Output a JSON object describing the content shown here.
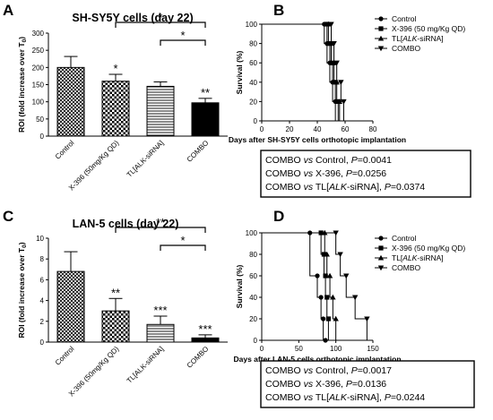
{
  "chart_data": [
    {
      "panel": "A",
      "type": "bar",
      "title": "SH-SY5Y cells (day 22)",
      "ylabel": "ROI (fold increase over T0)",
      "categories": [
        "Control",
        "X-396 (50mg/Kg QD)",
        "TL[ALK-siRNA]",
        "COMBO"
      ],
      "values": [
        200,
        160,
        145,
        97
      ],
      "errors": [
        32,
        20,
        13,
        13
      ],
      "patterns": [
        "crosshatch",
        "checker",
        "hlines",
        "solid"
      ],
      "ylim": [
        0,
        300
      ],
      "yticks": [
        0,
        50,
        100,
        150,
        200,
        250,
        300
      ],
      "bar_labels": [
        "",
        "*",
        "",
        "**"
      ],
      "brackets": [
        {
          "from": 1,
          "to": 3,
          "label": "*",
          "level": 0
        },
        {
          "from": 2,
          "to": 3,
          "label": "*",
          "level": 1
        }
      ]
    },
    {
      "panel": "B",
      "type": "line",
      "subtype": "step",
      "xlabel": "Days after SH-SY5Y cells orthotopic implantation",
      "ylabel": "Survival (%)",
      "xlim": [
        0,
        80
      ],
      "ylim": [
        0,
        100
      ],
      "xticks": [
        0,
        20,
        40,
        60,
        80
      ],
      "yticks": [
        0,
        20,
        40,
        60,
        80,
        100
      ],
      "series": [
        {
          "name": "Control",
          "marker": "circle",
          "x": [
            0,
            45,
            47,
            49,
            51,
            53
          ],
          "y": [
            100,
            80,
            60,
            40,
            20,
            0
          ]
        },
        {
          "name": "X-396 (50 mg/Kg QD)",
          "marker": "square",
          "x": [
            0,
            47,
            49,
            51,
            53,
            55
          ],
          "y": [
            100,
            80,
            60,
            40,
            20,
            0
          ]
        },
        {
          "name": "TL[ALK-siRNA]",
          "marker": "triangle-up",
          "x": [
            0,
            48,
            50,
            52,
            54,
            56
          ],
          "y": [
            100,
            80,
            60,
            40,
            20,
            0
          ]
        },
        {
          "name": "COMBO",
          "marker": "triangle-down",
          "x": [
            0,
            50,
            52,
            54,
            57,
            59
          ],
          "y": [
            100,
            80,
            60,
            40,
            20,
            0
          ]
        }
      ],
      "stats": [
        {
          "prefix": "COMBO ",
          "vs": "vs",
          "group": " Control, ",
          "group_italic": "",
          "group_suffix": "",
          "p": "P",
          "value": "=0.0041"
        },
        {
          "prefix": "COMBO ",
          "vs": "vs",
          "group": " X-396, ",
          "group_italic": "",
          "group_suffix": "",
          "p": "P",
          "value": "=0.0256"
        },
        {
          "prefix": "COMBO ",
          "vs": "vs",
          "group": " TL[",
          "group_italic": "ALK",
          "group_suffix": "-siRNA], ",
          "p": "P",
          "value": "=0.0374"
        }
      ]
    },
    {
      "panel": "C",
      "type": "bar",
      "title": "LAN-5 cells (day 22)",
      "ylabel": "ROI (fold increase over T0)",
      "categories": [
        "Control",
        "X-396 (50mg/Kg QD)",
        "TL[ALK-siRNA]",
        "COMBO"
      ],
      "values": [
        6.8,
        3.0,
        1.7,
        0.4
      ],
      "errors": [
        1.9,
        1.2,
        0.8,
        0.3
      ],
      "patterns": [
        "crosshatch",
        "checker",
        "hlines",
        "solid"
      ],
      "ylim": [
        0,
        10
      ],
      "yticks": [
        0,
        2,
        4,
        6,
        8,
        10
      ],
      "bar_labels": [
        "",
        "**",
        "***",
        "***"
      ],
      "brackets": [
        {
          "from": 1,
          "to": 3,
          "label": "**",
          "level": 0
        },
        {
          "from": 2,
          "to": 3,
          "label": "*",
          "level": 1
        }
      ]
    },
    {
      "panel": "D",
      "type": "line",
      "subtype": "step",
      "xlabel": "Days after LAN-5 cells orthotopic implantation",
      "ylabel": "Survival (%)",
      "xlim": [
        0,
        150
      ],
      "ylim": [
        0,
        100
      ],
      "xticks": [
        0,
        50,
        100,
        150
      ],
      "yticks": [
        0,
        20,
        40,
        60,
        80,
        100
      ],
      "series": [
        {
          "name": "Control",
          "marker": "circle",
          "x": [
            0,
            65,
            75,
            80,
            83,
            86
          ],
          "y": [
            100,
            60,
            40,
            20,
            0,
            0
          ]
        },
        {
          "name": "X-396 (50 mg/Kg QD)",
          "marker": "square",
          "x": [
            0,
            80,
            84,
            86,
            88,
            90
          ],
          "y": [
            100,
            80,
            60,
            40,
            20,
            0
          ]
        },
        {
          "name": "TL[ALK-siRNA]",
          "marker": "triangle-up",
          "x": [
            0,
            85,
            88,
            92,
            96,
            100
          ],
          "y": [
            100,
            80,
            60,
            40,
            20,
            0
          ]
        },
        {
          "name": "COMBO",
          "marker": "triangle-down",
          "x": [
            0,
            100,
            106,
            114,
            126,
            142
          ],
          "y": [
            100,
            80,
            60,
            40,
            20,
            0
          ]
        }
      ],
      "stats": [
        {
          "prefix": "COMBO ",
          "vs": "vs",
          "group": " Control, ",
          "group_italic": "",
          "group_suffix": "",
          "p": "P",
          "value": "=0.0017"
        },
        {
          "prefix": "COMBO ",
          "vs": "vs",
          "group": " X-396, ",
          "group_italic": "",
          "group_suffix": "",
          "p": "P",
          "value": "=0.0136"
        },
        {
          "prefix": "COMBO ",
          "vs": "vs",
          "group": " TL[",
          "group_italic": "ALK",
          "group_suffix": "-siRNA], ",
          "p": "P",
          "value": "=0.0244"
        }
      ]
    }
  ]
}
